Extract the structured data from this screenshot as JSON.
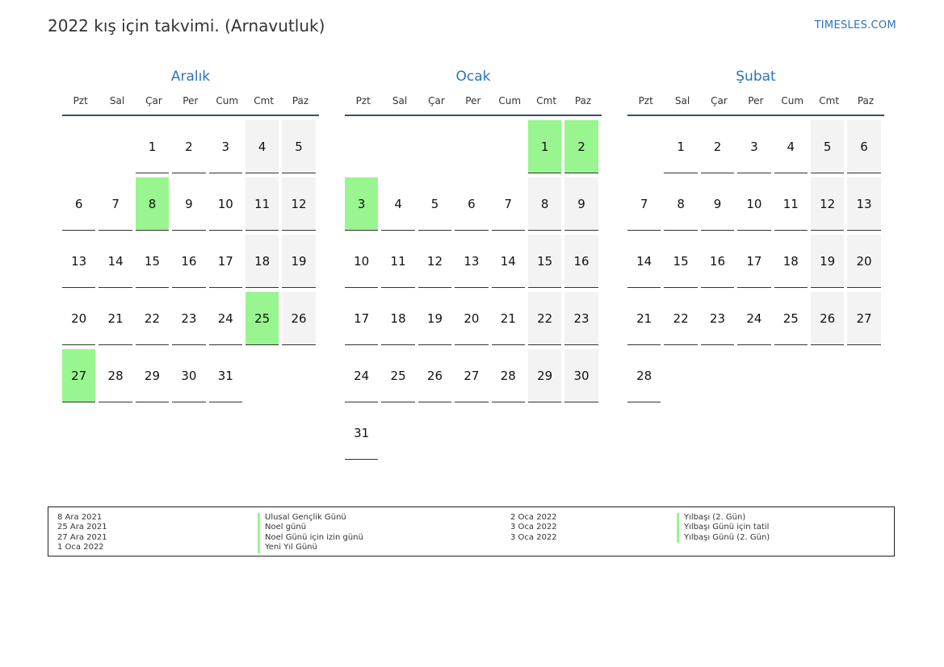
{
  "header": {
    "title": "2022 kış için takvimi. (Arnavutluk)",
    "site": "TIMESLES.COM"
  },
  "weekdays": [
    "Pzt",
    "Sal",
    "Çar",
    "Per",
    "Cum",
    "Cmt",
    "Paz"
  ],
  "months": [
    {
      "name": "Aralık",
      "offset": 2,
      "days": 31,
      "holidays": [
        8,
        25,
        27
      ]
    },
    {
      "name": "Ocak",
      "offset": 5,
      "days": 31,
      "holidays": [
        1,
        2,
        3
      ]
    },
    {
      "name": "Şubat",
      "offset": 1,
      "days": 28,
      "holidays": []
    }
  ],
  "legend": [
    {
      "date": "8 Ara 2021",
      "name": "Ulusal Gençlik Günü"
    },
    {
      "date": "25 Ara 2021",
      "name": "Noel günü"
    },
    {
      "date": "27 Ara 2021",
      "name": "Noel Günü için izin günü"
    },
    {
      "date": "1 Oca 2022",
      "name": "Yeni Yıl Günü"
    },
    {
      "date": "2 Oca 2022",
      "name": "Yılbaşı (2. Gün)"
    },
    {
      "date": "3 Oca 2022",
      "name": "Yılbaşı Günü için tatil"
    },
    {
      "date": "3 Oca 2022",
      "name": "Yılbaşı Günü (2. Gün)"
    }
  ],
  "colors": {
    "holiday": "#99f58f",
    "weekend": "#f3f3f3",
    "accent": "#2a74b8"
  }
}
